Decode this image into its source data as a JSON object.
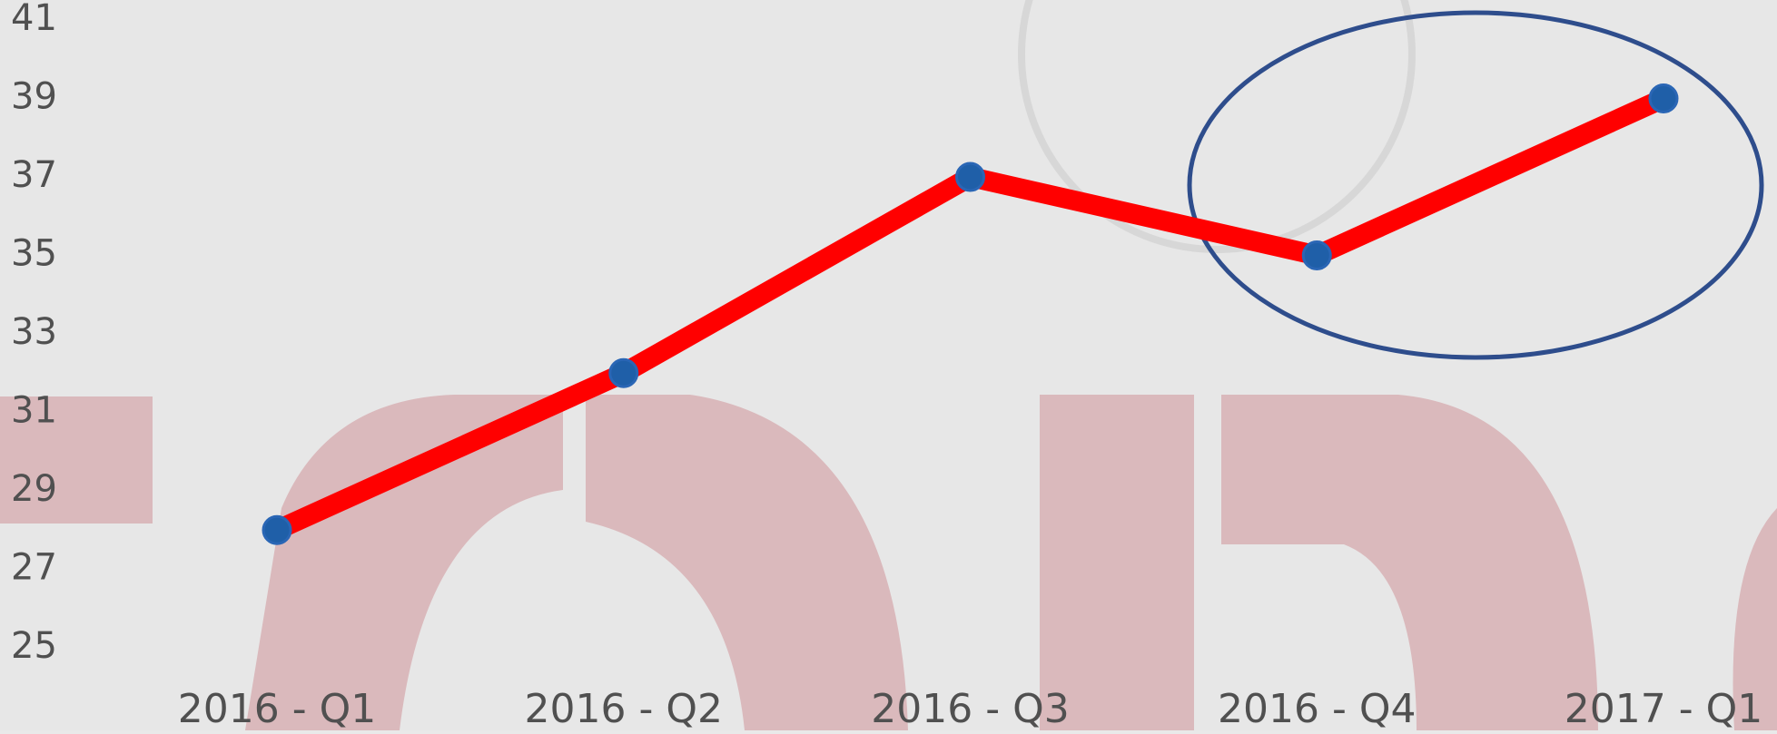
{
  "chart_data": {
    "type": "line",
    "categories": [
      "2016 - Q1",
      "2016 - Q2",
      "2016 - Q3",
      "2016 - Q4",
      "2017 - Q1"
    ],
    "series": [
      {
        "color": "#ff0000",
        "marker_color": "#1f5fa8",
        "values": [
          28,
          32,
          37,
          35,
          39
        ]
      }
    ],
    "ylim": [
      25,
      41
    ],
    "yticks": [
      25,
      27,
      29,
      31,
      33,
      35,
      37,
      39,
      41
    ],
    "grid": false
  }
}
